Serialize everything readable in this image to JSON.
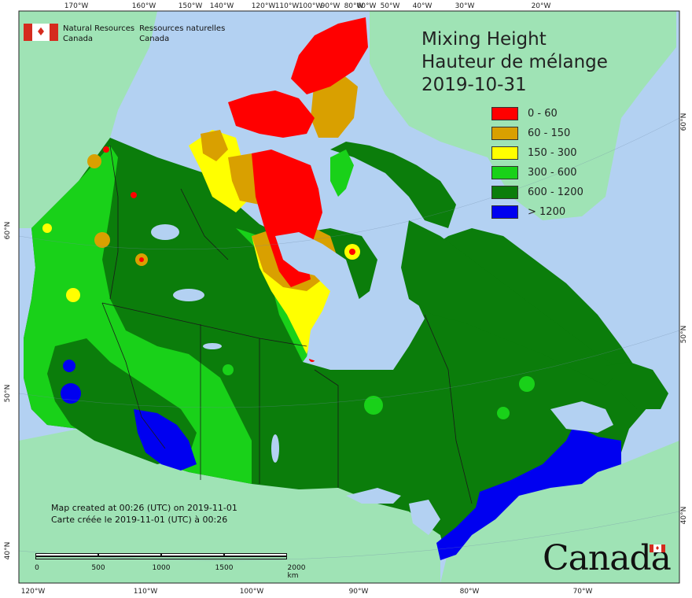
{
  "title": {
    "line1": "Mixing Height",
    "line2": "Hauteur de mélange",
    "date": "2019-10-31"
  },
  "legend": [
    {
      "label": "0 - 60",
      "color": "#ff0000"
    },
    {
      "label": "60 - 150",
      "color": "#d9a000"
    },
    {
      "label": "150 - 300",
      "color": "#ffff00"
    },
    {
      "label": "300 - 600",
      "color": "#19d119"
    },
    {
      "label": "600 - 1200",
      "color": "#0b7d0b"
    },
    {
      "label": "> 1200",
      "color": "#0000f0"
    }
  ],
  "agency": {
    "en_line1": "Natural Resources",
    "en_line2": "Canada",
    "fr_line1": "Ressources naturelles",
    "fr_line2": "Canada"
  },
  "wordmark": "Canada",
  "credits": {
    "en": "Map created at 00:26 (UTC) on 2019-11-01",
    "fr": "Carte créée le 2019-11-01 (UTC) à 00:26"
  },
  "scale": {
    "labels": [
      "0",
      "500",
      "1000",
      "1500",
      "2000 km"
    ]
  },
  "graticule": {
    "top": [
      "170°W",
      "160°W",
      "150°W",
      "140°W",
      "120°W",
      "110°W",
      "100°W",
      "90°W",
      "80°W",
      "60°W",
      "50°W",
      "40°W",
      "30°W",
      "20°W"
    ],
    "bottom": [
      "120°W",
      "110°W",
      "100°W",
      "90°W",
      "80°W",
      "70°W"
    ],
    "left": [
      "60°N",
      "50°N",
      "40°N"
    ],
    "right": [
      "60°N",
      "50°N",
      "40°N"
    ]
  },
  "colors": {
    "ocean": "#b3d1f2",
    "foreign_land": "#9fe3b5",
    "frame": "#222222"
  }
}
